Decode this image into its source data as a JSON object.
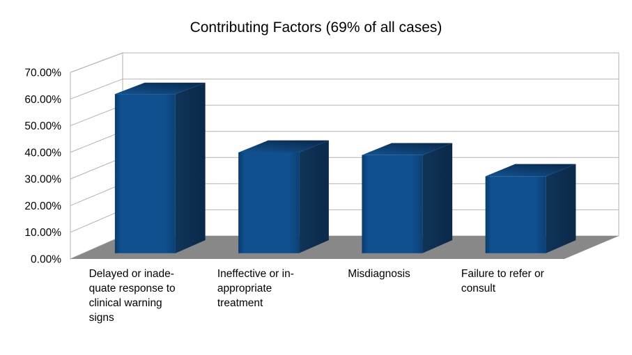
{
  "page": {
    "background": "#ffffff"
  },
  "chart_data": {
    "type": "bar",
    "projection": "3d",
    "title": "Contributing Factors (69% of all cases)",
    "categories": [
      "Delayed or inadequate response to clinical warning signs",
      "Ineffective or inappropriate treatment",
      "Misdiagnosis",
      "Failure to refer or consult"
    ],
    "category_lines": [
      [
        "Delayed or inade-",
        "quate response to",
        "clinical warning",
        "signs"
      ],
      [
        "Ineffective or in-",
        "appropriate",
        "treatment"
      ],
      [
        "Misdiagnosis"
      ],
      [
        "Failure to refer or",
        "consult"
      ]
    ],
    "values": [
      60,
      38,
      37,
      29
    ],
    "unit": "%",
    "ylim": [
      0,
      70
    ],
    "y_ticks": [
      {
        "value": 70,
        "label": "70.00%"
      },
      {
        "value": 60,
        "label": "60.00%"
      },
      {
        "value": 50,
        "label": "50.00%"
      },
      {
        "value": 40,
        "label": "40.00%"
      },
      {
        "value": 30,
        "label": "30.00%"
      },
      {
        "value": 20,
        "label": "20.00%"
      },
      {
        "value": 10,
        "label": "10.00%"
      },
      {
        "value": 0,
        "label": "0.00%"
      }
    ],
    "xlabel": "",
    "ylabel": "",
    "grid": true,
    "legend": false,
    "colors": {
      "bar_front": "#10508f",
      "bar_front_edge": "#0a3b6d",
      "bar_front_edge_right": "#0c4078",
      "bar_top_front": "#125391",
      "bar_top_mid": "#0e3d6d",
      "bar_top_back": "#0a2c51",
      "bar_side": "#103459",
      "bar_side_dark": "#0b2949",
      "floor": "#888888",
      "gridline": "#b2b2b2",
      "wall_fill": "#ffffff",
      "text": "#000000",
      "background": "#ffffff"
    }
  }
}
